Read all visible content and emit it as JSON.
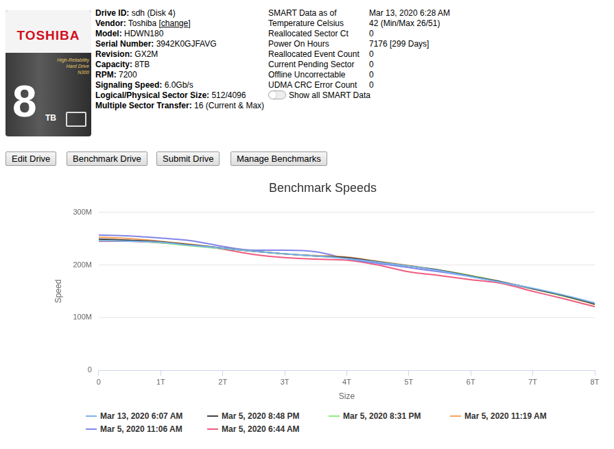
{
  "drive_image": {
    "brand": "TOSHIBA",
    "lines": [
      "High-Reliability",
      "Hard Drive",
      "N300"
    ],
    "capacity": "8",
    "unit": "TB"
  },
  "drive_info": [
    {
      "label": "Drive ID:",
      "value": "sdh (Disk 4)"
    },
    {
      "label": "Vendor:",
      "value": "Toshiba",
      "link": "[change]"
    },
    {
      "label": "Model:",
      "value": "HDWN180"
    },
    {
      "label": "Serial Number:",
      "value": "3942K0GJFAVG"
    },
    {
      "label": "Revision:",
      "value": "GX2M"
    },
    {
      "label": "Capacity:",
      "value": "8TB"
    },
    {
      "label": "RPM:",
      "value": "7200"
    },
    {
      "label": "Signaling Speed:",
      "value": "6.0Gb/s"
    },
    {
      "label": "Logical/Physical Sector Size:",
      "value": "512/4096"
    },
    {
      "label": "Multiple Sector Transfer:",
      "value": "16 (Current & Max)"
    }
  ],
  "smart": {
    "rows": [
      {
        "label": "SMART Data as of",
        "value": "Mar 13, 2020 6:28 AM"
      },
      {
        "label": "Temperature Celsius",
        "value": "42 (Min/Max 26/51)"
      },
      {
        "label": "Reallocated Sector Ct",
        "value": "0"
      },
      {
        "label": "Power On Hours",
        "value": "7176 [299 Days]"
      },
      {
        "label": "Reallocated Event Count",
        "value": "0"
      },
      {
        "label": "Current Pending Sector",
        "value": "0"
      },
      {
        "label": "Offline Uncorrectable",
        "value": "0"
      },
      {
        "label": "UDMA CRC Error Count",
        "value": "0"
      }
    ],
    "toggle": "Show all SMART Data"
  },
  "buttons": [
    "Edit Drive",
    "Benchmark Drive",
    "Submit Drive",
    "Manage Benchmarks"
  ],
  "chart_data": {
    "type": "line",
    "title": "Benchmark Speeds",
    "x_label": "Size",
    "y_label": "Speed",
    "x": [
      0,
      0.5,
      1,
      1.5,
      2,
      2.5,
      3,
      3.5,
      4,
      4.5,
      5,
      5.5,
      6,
      6.5,
      7,
      7.5,
      8
    ],
    "series": [
      {
        "name": "Mar 13, 2020 6:07 AM",
        "color": "#7cb5ec",
        "values": [
          246,
          245,
          243,
          237,
          232,
          226,
          221,
          217,
          212,
          205,
          198,
          189,
          178,
          167,
          156,
          143,
          128
        ]
      },
      {
        "name": "Mar 5, 2020 8:48 PM",
        "color": "#434348",
        "values": [
          249,
          247,
          244,
          238,
          232,
          226,
          221,
          217,
          214,
          206,
          198,
          190,
          179,
          168,
          155,
          142,
          126
        ]
      },
      {
        "name": "Mar 5, 2020 8:31 PM",
        "color": "#90ed7d",
        "values": [
          247,
          246,
          242,
          236,
          231,
          226,
          221,
          217,
          213,
          206,
          198,
          190,
          180,
          168,
          155,
          141,
          126
        ]
      },
      {
        "name": "Mar 5, 2020 11:19 AM",
        "color": "#f7a35c",
        "values": [
          253,
          250,
          245,
          239,
          232,
          226,
          221,
          218,
          215,
          207,
          199,
          190,
          180,
          168,
          155,
          141,
          125
        ]
      },
      {
        "name": "Mar 5, 2020 11:06 AM",
        "color": "#8085e9",
        "values": [
          257,
          255,
          251,
          246,
          235,
          228,
          228,
          225,
          212,
          203,
          195,
          187,
          178,
          167,
          155,
          142,
          127
        ]
      },
      {
        "name": "Mar 5, 2020 6:44 AM",
        "color": "#f15c80",
        "values": [
          245,
          245,
          242,
          238,
          230,
          220,
          214,
          211,
          209,
          200,
          187,
          180,
          172,
          165,
          150,
          136,
          121
        ]
      }
    ],
    "xlim": [
      0,
      8
    ],
    "xticks": [
      0,
      {
        "value": 1,
        "label": "1T"
      },
      {
        "value": 2,
        "label": "2T"
      },
      {
        "value": 3,
        "label": "3T"
      },
      {
        "value": 4,
        "label": "4T"
      },
      {
        "value": 5,
        "label": "5T"
      },
      {
        "value": 6,
        "label": "6T"
      },
      {
        "value": 7,
        "label": "7T"
      },
      {
        "value": 8,
        "label": "8T"
      }
    ],
    "ylim": [
      0,
      300
    ],
    "yticks": [
      0,
      {
        "value": 100,
        "label": "100M"
      },
      {
        "value": 200,
        "label": "200M"
      },
      {
        "value": 300,
        "label": "300M"
      }
    ],
    "grid": true,
    "legend": "bottom"
  }
}
